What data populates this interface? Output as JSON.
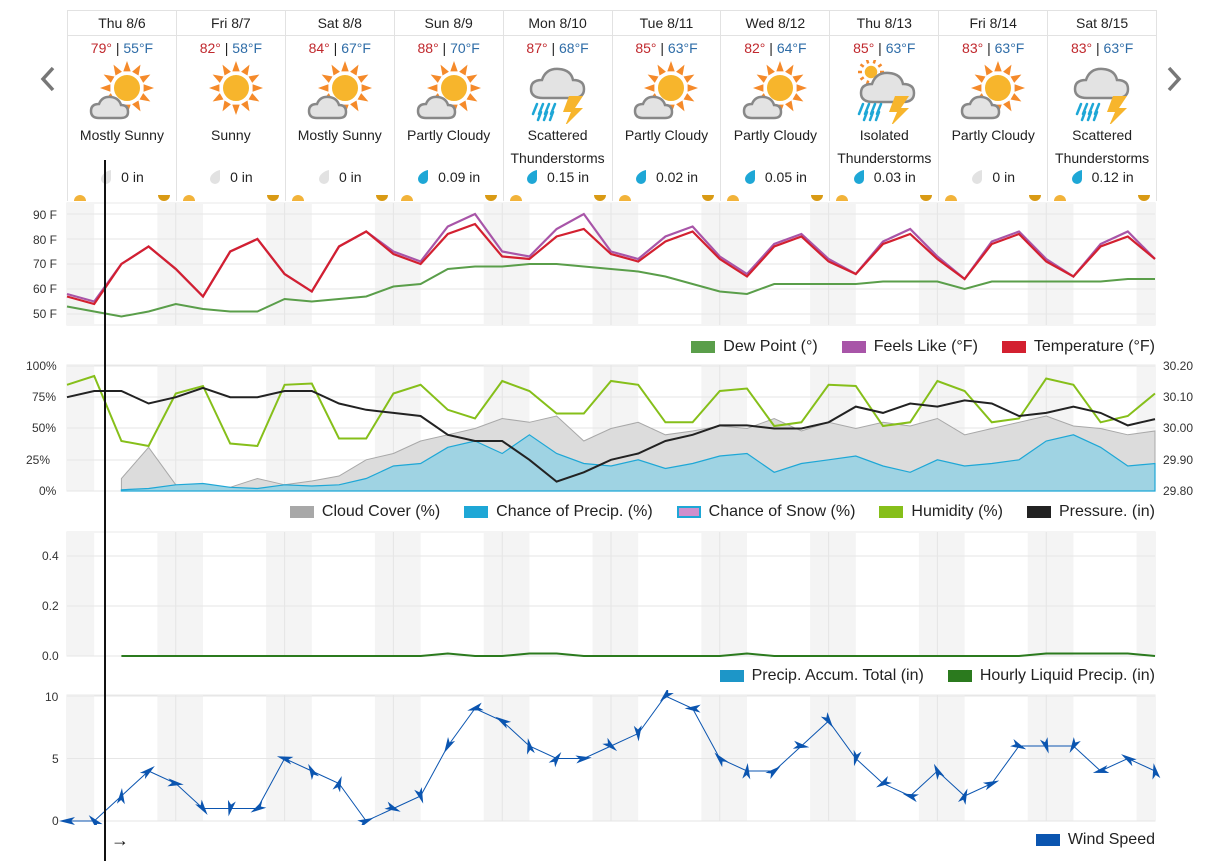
{
  "navigation": {
    "prev_icon": "chevron-left-icon",
    "next_icon": "chevron-right-icon"
  },
  "days": [
    {
      "label": "Thu 8/6",
      "high": "79°",
      "low": "55°F",
      "icon": "mostly-sunny-icon",
      "condition_line1": "Mostly Sunny",
      "condition_line2": "",
      "precip": "0 in",
      "precip_active": false
    },
    {
      "label": "Fri 8/7",
      "high": "82°",
      "low": "58°F",
      "icon": "sunny-icon",
      "condition_line1": "Sunny",
      "condition_line2": "",
      "precip": "0 in",
      "precip_active": false
    },
    {
      "label": "Sat 8/8",
      "high": "84°",
      "low": "67°F",
      "icon": "mostly-sunny-icon",
      "condition_line1": "Mostly Sunny",
      "condition_line2": "",
      "precip": "0 in",
      "precip_active": false
    },
    {
      "label": "Sun 8/9",
      "high": "88°",
      "low": "70°F",
      "icon": "partly-cloudy-icon",
      "condition_line1": "Partly Cloudy",
      "condition_line2": "",
      "precip": "0.09 in",
      "precip_active": true
    },
    {
      "label": "Mon 8/10",
      "high": "87°",
      "low": "68°F",
      "icon": "thunderstorm-icon",
      "condition_line1": "Scattered",
      "condition_line2": "Thunderstorms",
      "precip": "0.15 in",
      "precip_active": true
    },
    {
      "label": "Tue 8/11",
      "high": "85°",
      "low": "63°F",
      "icon": "partly-cloudy-icon",
      "condition_line1": "Partly Cloudy",
      "condition_line2": "",
      "precip": "0.02 in",
      "precip_active": true
    },
    {
      "label": "Wed 8/12",
      "high": "82°",
      "low": "64°F",
      "icon": "partly-cloudy-icon",
      "condition_line1": "Partly Cloudy",
      "condition_line2": "",
      "precip": "0.05 in",
      "precip_active": true
    },
    {
      "label": "Thu 8/13",
      "high": "85°",
      "low": "63°F",
      "icon": "isolated-thunderstorm-icon",
      "condition_line1": "Isolated",
      "condition_line2": "Thunderstorms",
      "precip": "0.03 in",
      "precip_active": true
    },
    {
      "label": "Fri 8/14",
      "high": "83°",
      "low": "63°F",
      "icon": "partly-cloudy-icon",
      "condition_line1": "Partly Cloudy",
      "condition_line2": "",
      "precip": "0 in",
      "precip_active": false
    },
    {
      "label": "Sat 8/15",
      "high": "83°",
      "low": "63°F",
      "icon": "thunderstorm-icon",
      "condition_line1": "Scattered",
      "condition_line2": "Thunderstorms",
      "precip": "0.12 in",
      "precip_active": true
    }
  ],
  "colors": {
    "high": "#c0282d",
    "low": "#2e6ca7",
    "temperature": "#d32030",
    "feels_like": "#a855a8",
    "dew_point": "#5a9e4a",
    "cloud_cover": "#a8a8a8",
    "chance_precip": "#1ea7d6",
    "chance_snow": "#d08fcc",
    "humidity": "#86bf1a",
    "pressure": "#222222",
    "precip_accum": "#1d96c8",
    "hourly_precip": "#2b7a1e",
    "wind": "#0b55b0",
    "night_band": "#f4f4f4",
    "grid": "#e6e6e6"
  },
  "chart_data": [
    {
      "type": "line",
      "title": "Temperature",
      "ylabel": "°F",
      "yticks": [
        "90 F",
        "80 F",
        "70 F",
        "60 F",
        "50 F"
      ],
      "ylim": [
        46,
        94
      ],
      "x_note": "Hourly from Thu 8/6 00:00 to Sat 8/15 ~24:00 (sampled every 6h)",
      "legend": [
        "Dew Point (°)",
        "Feels Like (°F)",
        "Temperature (°F)"
      ],
      "x": [
        "8/6 00",
        "8/6 06",
        "8/6 12",
        "8/6 18",
        "8/7 00",
        "8/7 06",
        "8/7 12",
        "8/7 18",
        "8/8 00",
        "8/8 06",
        "8/8 12",
        "8/8 18",
        "8/9 00",
        "8/9 06",
        "8/9 12",
        "8/9 18",
        "8/10 00",
        "8/10 06",
        "8/10 12",
        "8/10 18",
        "8/11 00",
        "8/11 06",
        "8/11 12",
        "8/11 18",
        "8/12 00",
        "8/12 06",
        "8/12 12",
        "8/12 18",
        "8/13 00",
        "8/13 06",
        "8/13 12",
        "8/13 18",
        "8/14 00",
        "8/14 06",
        "8/14 12",
        "8/14 18",
        "8/15 00",
        "8/15 06",
        "8/15 12",
        "8/15 18",
        "8/16 00"
      ],
      "series": [
        {
          "name": "Temperature (°F)",
          "values": [
            57,
            54,
            70,
            77,
            68,
            57,
            75,
            80,
            66,
            59,
            77,
            83,
            74,
            70,
            82,
            86,
            73,
            72,
            81,
            84,
            74,
            71,
            79,
            83,
            72,
            65,
            77,
            81,
            71,
            66,
            78,
            82,
            72,
            64,
            78,
            82,
            71,
            65,
            77,
            81,
            72
          ]
        },
        {
          "name": "Feels Like (°F)",
          "values": [
            58,
            55,
            70,
            77,
            68,
            57,
            75,
            80,
            66,
            59,
            77,
            83,
            75,
            71,
            85,
            90,
            75,
            73,
            84,
            90,
            75,
            72,
            81,
            85,
            73,
            66,
            78,
            82,
            72,
            66,
            79,
            84,
            73,
            64,
            79,
            83,
            72,
            65,
            78,
            83,
            72
          ]
        },
        {
          "name": "Dew Point (°)",
          "values": [
            53,
            51,
            49,
            51,
            54,
            52,
            51,
            51,
            56,
            55,
            56,
            57,
            61,
            62,
            68,
            69,
            69,
            70,
            70,
            69,
            68,
            67,
            65,
            62,
            59,
            58,
            62,
            62,
            62,
            62,
            63,
            63,
            63,
            60,
            63,
            63,
            63,
            63,
            63,
            64,
            64
          ]
        }
      ]
    },
    {
      "type": "line",
      "title": "Cloud, Precip Chance, Humidity, Pressure",
      "yticks_left": [
        "100%",
        "75%",
        "50%",
        "25%",
        "0%"
      ],
      "yticks_right": [
        "30.20",
        "30.10",
        "30.00",
        "29.90",
        "29.80"
      ],
      "ylim_left": [
        0,
        100
      ],
      "ylim_right": [
        29.8,
        30.2
      ],
      "legend": [
        "Cloud Cover (%)",
        "Chance of Precip. (%)",
        "Chance of Snow (%)",
        "Humidity (%)",
        "Pressure. (in)"
      ],
      "series": [
        {
          "name": "Cloud Cover (%)",
          "values": [
            null,
            null,
            10,
            35,
            5,
            0,
            3,
            10,
            5,
            8,
            12,
            25,
            30,
            40,
            45,
            50,
            58,
            55,
            60,
            40,
            50,
            55,
            45,
            48,
            52,
            50,
            58,
            48,
            55,
            50,
            55,
            52,
            58,
            45,
            50,
            55,
            60,
            52,
            50,
            45,
            48
          ]
        },
        {
          "name": "Chance of Precip. (%)",
          "values": [
            null,
            null,
            1,
            2,
            5,
            6,
            3,
            2,
            5,
            4,
            5,
            10,
            20,
            22,
            35,
            40,
            30,
            45,
            30,
            22,
            20,
            25,
            18,
            22,
            28,
            30,
            15,
            22,
            25,
            28,
            20,
            15,
            25,
            20,
            22,
            25,
            40,
            45,
            35,
            20,
            22
          ]
        },
        {
          "name": "Chance of Snow (%)",
          "values": []
        },
        {
          "name": "Humidity (%)",
          "values": [
            85,
            92,
            40,
            36,
            78,
            84,
            38,
            36,
            85,
            86,
            42,
            42,
            78,
            85,
            65,
            58,
            88,
            80,
            62,
            62,
            88,
            85,
            55,
            55,
            80,
            82,
            52,
            55,
            85,
            84,
            52,
            55,
            88,
            80,
            55,
            58,
            90,
            85,
            55,
            60,
            78
          ]
        },
        {
          "name": "Pressure. (in)",
          "values": [
            30.1,
            30.12,
            30.12,
            30.08,
            30.1,
            30.13,
            30.1,
            30.1,
            30.12,
            30.12,
            30.08,
            30.06,
            30.05,
            30.04,
            29.98,
            29.96,
            29.96,
            29.9,
            29.83,
            29.86,
            29.9,
            29.92,
            29.96,
            29.98,
            30.01,
            30.01,
            30.0,
            30.0,
            30.02,
            30.07,
            30.05,
            30.08,
            30.07,
            30.09,
            30.08,
            30.04,
            30.05,
            30.07,
            30.05,
            30.01,
            30.03
          ]
        }
      ]
    },
    {
      "type": "line",
      "title": "Precipitation",
      "yticks": [
        "0.4",
        "0.2",
        "0.0"
      ],
      "ylim": [
        0,
        0.5
      ],
      "legend": [
        "Precip. Accum. Total (in)",
        "Hourly Liquid Precip. (in)"
      ],
      "series": [
        {
          "name": "Hourly Liquid Precip. (in)",
          "values": [
            null,
            null,
            0,
            0,
            0,
            0,
            0,
            0,
            0,
            0,
            0,
            0,
            0,
            0,
            0.01,
            0,
            0,
            0.01,
            0.01,
            0,
            0,
            0,
            0,
            0,
            0,
            0.01,
            0,
            0,
            0,
            0,
            0,
            0,
            0,
            0,
            0,
            0,
            0.01,
            0.01,
            0.01,
            0.01,
            0
          ]
        },
        {
          "name": "Precip. Accum. Total (in)",
          "values": []
        }
      ]
    },
    {
      "type": "line",
      "title": "Wind Speed",
      "yticks": [
        "10",
        "5",
        "0"
      ],
      "ylim": [
        0,
        10
      ],
      "legend": [
        "Wind Speed"
      ],
      "series": [
        {
          "name": "Wind Speed",
          "values": [
            0,
            0,
            2,
            4,
            3,
            1,
            1,
            1,
            5,
            4,
            3,
            0,
            1,
            2,
            6,
            9,
            8,
            6,
            5,
            5,
            6,
            7,
            10,
            9,
            5,
            4,
            4,
            6,
            8,
            5,
            3,
            2,
            4,
            2,
            3,
            6,
            6,
            6,
            4,
            5,
            4
          ]
        }
      ]
    }
  ],
  "charts": {
    "temp": {
      "yticks": [
        "90 F",
        "80 F",
        "70 F",
        "60 F",
        "50 F"
      ],
      "legend": [
        "Dew Point (°)",
        "Feels Like (°F)",
        "Temperature (°F)"
      ]
    },
    "atmo": {
      "yticks_left": [
        "100%",
        "75%",
        "50%",
        "25%",
        "0%"
      ],
      "yticks_right": [
        "30.20",
        "30.10",
        "30.00",
        "29.90",
        "29.80"
      ],
      "legend": [
        "Cloud Cover (%)",
        "Chance of Precip. (%)",
        "Chance of Snow (%)",
        "Humidity (%)",
        "Pressure. (in)"
      ]
    },
    "precip": {
      "yticks": [
        "0.4",
        "0.2",
        "0.0"
      ],
      "legend": [
        "Precip. Accum. Total (in)",
        "Hourly Liquid Precip. (in)"
      ]
    },
    "wind": {
      "yticks": [
        "10",
        "5",
        "0"
      ],
      "legend": [
        "Wind Speed"
      ],
      "direction_arrow": "→"
    }
  }
}
